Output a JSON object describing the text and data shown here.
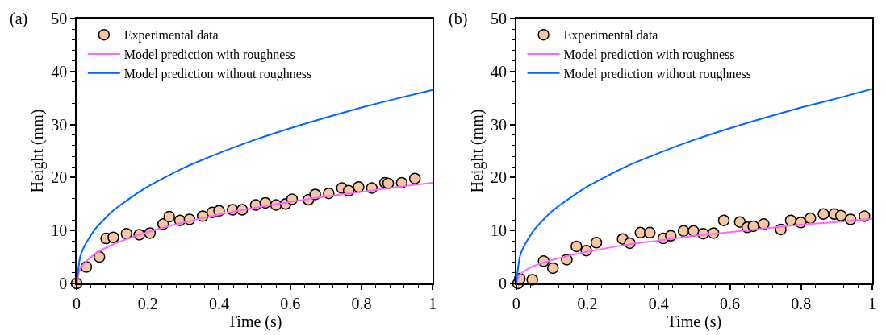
{
  "chart_data": [
    {
      "type": "scatter",
      "annotations": [
        "(a)"
      ],
      "xlabel": "Time (s)",
      "ylabel": "Height (mm)",
      "xlim": [
        0,
        1
      ],
      "xticks": [
        0,
        0.2,
        0.4,
        0.6,
        0.8,
        1
      ],
      "ylim": [
        0,
        50
      ],
      "yticks": [
        0,
        10,
        20,
        30,
        40,
        50
      ],
      "legend": "top left",
      "series": [
        {
          "name": "Experimental data",
          "marker": "circle",
          "color": "#f7c6a3",
          "x": [
            0,
            0.027,
            0.064,
            0.083,
            0.103,
            0.14,
            0.176,
            0.206,
            0.243,
            0.26,
            0.29,
            0.317,
            0.354,
            0.381,
            0.4,
            0.438,
            0.465,
            0.503,
            0.53,
            0.56,
            0.587,
            0.605,
            0.651,
            0.67,
            0.708,
            0.745,
            0.764,
            0.792,
            0.829,
            0.866,
            0.875,
            0.913,
            0.95
          ],
          "values": [
            0,
            3.1,
            5.0,
            8.5,
            8.7,
            9.4,
            9.2,
            9.5,
            11.2,
            12.6,
            11.9,
            12.1,
            12.7,
            13.4,
            13.7,
            13.9,
            13.9,
            14.8,
            15.2,
            14.8,
            15.0,
            15.9,
            15.8,
            16.8,
            17.0,
            18.0,
            17.5,
            18.2,
            18.0,
            19.0,
            18.9,
            19.0,
            19.8
          ]
        },
        {
          "name": "Model prediction with roughness",
          "type": "line",
          "marker": "none",
          "line_style": "solid",
          "color": "#ff66ff",
          "x": [
            0,
            0.01,
            0.02,
            0.05,
            0.1,
            0.15,
            0.2,
            0.3,
            0.4,
            0.5,
            0.6,
            0.7,
            0.8,
            0.9,
            1
          ],
          "values": [
            0,
            2.8,
            3.7,
            5.5,
            7.3,
            8.6,
            9.7,
            11.5,
            13.0,
            14.3,
            15.4,
            16.4,
            17.3,
            18.2,
            19.0
          ]
        },
        {
          "name": "Model prediction without roughness",
          "type": "line",
          "marker": "none",
          "line_style": "solid",
          "color": "#0066ff",
          "x": [
            0,
            0.01,
            0.02,
            0.05,
            0.1,
            0.15,
            0.2,
            0.3,
            0.4,
            0.5,
            0.6,
            0.7,
            0.8,
            0.9,
            1
          ],
          "values": [
            0,
            5.0,
            6.8,
            10.1,
            13.6,
            16.1,
            18.3,
            21.8,
            24.6,
            27.1,
            29.3,
            31.3,
            33.2,
            34.9,
            36.5
          ]
        }
      ]
    },
    {
      "type": "scatter",
      "annotations": [
        "(b)"
      ],
      "xlabel": "Time (s)",
      "ylabel": "Height (mm)",
      "xlim": [
        0,
        1
      ],
      "xticks": [
        0,
        0.2,
        0.4,
        0.6,
        0.8,
        1
      ],
      "ylim": [
        0,
        50
      ],
      "yticks": [
        0,
        10,
        20,
        30,
        40,
        50
      ],
      "legend": "top left",
      "series": [
        {
          "name": "Experimental data",
          "marker": "circle",
          "color": "#f7c6a3",
          "x": [
            0.005,
            0.01,
            0.045,
            0.077,
            0.103,
            0.142,
            0.169,
            0.197,
            0.225,
            0.299,
            0.319,
            0.349,
            0.375,
            0.413,
            0.434,
            0.47,
            0.498,
            0.525,
            0.554,
            0.583,
            0.628,
            0.649,
            0.666,
            0.695,
            0.743,
            0.771,
            0.799,
            0.826,
            0.863,
            0.893,
            0.912,
            0.939,
            0.978
          ],
          "values": [
            0,
            0.9,
            0.7,
            4.2,
            2.9,
            4.5,
            7.0,
            6.2,
            7.7,
            8.4,
            7.6,
            9.6,
            9.6,
            8.5,
            9.0,
            9.9,
            9.9,
            9.4,
            9.5,
            11.9,
            11.6,
            10.6,
            10.8,
            11.2,
            10.2,
            11.9,
            11.5,
            12.3,
            13.1,
            13.1,
            12.8,
            12.1,
            12.7
          ]
        },
        {
          "name": "Model prediction with roughness",
          "type": "line",
          "marker": "none",
          "line_style": "solid",
          "color": "#ff66ff",
          "x": [
            0,
            0.01,
            0.02,
            0.05,
            0.1,
            0.15,
            0.2,
            0.3,
            0.4,
            0.5,
            0.6,
            0.7,
            0.8,
            0.9,
            1
          ],
          "values": [
            0,
            1.6,
            2.2,
            3.3,
            4.4,
            5.3,
            6.0,
            7.2,
            8.1,
            9.0,
            9.7,
            10.4,
            11.1,
            11.6,
            12.2
          ]
        },
        {
          "name": "Model prediction without roughness",
          "type": "line",
          "marker": "none",
          "line_style": "solid",
          "color": "#0066ff",
          "x": [
            0,
            0.01,
            0.02,
            0.05,
            0.1,
            0.15,
            0.2,
            0.3,
            0.4,
            0.5,
            0.6,
            0.7,
            0.8,
            0.9,
            1
          ],
          "values": [
            0,
            5.0,
            6.8,
            10.1,
            13.6,
            16.1,
            18.3,
            21.8,
            24.6,
            27.1,
            29.3,
            31.3,
            33.2,
            34.9,
            36.7
          ]
        }
      ]
    }
  ]
}
